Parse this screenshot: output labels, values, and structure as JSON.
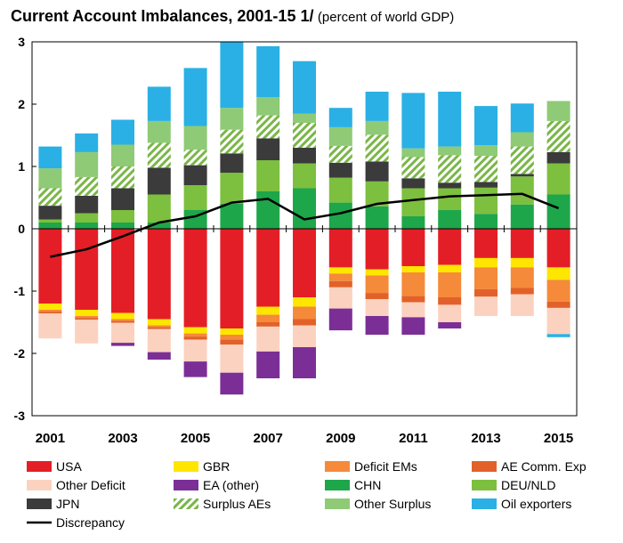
{
  "chart_data": {
    "type": "bar",
    "stacked": true,
    "title": "Current Account Imbalances, 2001-15 1/",
    "subtitle": "(percent of world GDP)",
    "xlabel": "",
    "ylabel": "",
    "ylim": [
      -3,
      3
    ],
    "yticks": [
      "3",
      "2",
      "1",
      "0",
      "-1",
      "-2",
      "-3"
    ],
    "grid": false,
    "legend_position": "bottom",
    "categories": [
      "2001",
      "2002",
      "2003",
      "2004",
      "2005",
      "2006",
      "2007",
      "2008",
      "2009",
      "2010",
      "2011",
      "2012",
      "2013",
      "2014",
      "2015"
    ],
    "x_tick_labels": [
      "2001",
      "2003",
      "2005",
      "2007",
      "2009",
      "2011",
      "2013",
      "2015"
    ],
    "positive_series": [
      {
        "name": "CHN",
        "color": "#1ea64a",
        "values": [
          0.1,
          0.1,
          0.1,
          0.1,
          0.3,
          0.4,
          0.6,
          0.65,
          0.42,
          0.36,
          0.2,
          0.3,
          0.24,
          0.39,
          0.55
        ]
      },
      {
        "name": "DEU/NLD",
        "color": "#7dbf3e",
        "values": [
          0.05,
          0.15,
          0.2,
          0.45,
          0.4,
          0.5,
          0.5,
          0.4,
          0.4,
          0.4,
          0.45,
          0.35,
          0.42,
          0.45,
          0.5
        ]
      },
      {
        "name": "JPN",
        "color": "#3b3b3b",
        "values": [
          0.22,
          0.28,
          0.35,
          0.43,
          0.32,
          0.31,
          0.35,
          0.25,
          0.24,
          0.32,
          0.16,
          0.09,
          0.09,
          0.04,
          0.18
        ]
      },
      {
        "name": "Surplus AEs",
        "color": "#7ab648",
        "pattern": true,
        "values": [
          0.28,
          0.3,
          0.35,
          0.4,
          0.25,
          0.38,
          0.37,
          0.4,
          0.27,
          0.43,
          0.34,
          0.44,
          0.42,
          0.44,
          0.5
        ]
      },
      {
        "name": "Other Surplus",
        "color": "#8fca76",
        "values": [
          0.32,
          0.4,
          0.35,
          0.35,
          0.38,
          0.35,
          0.29,
          0.15,
          0.3,
          0.22,
          0.14,
          0.14,
          0.17,
          0.23,
          0.32
        ]
      },
      {
        "name": "Oil exporters",
        "color": "#2ab0e4",
        "values": [
          0.35,
          0.3,
          0.4,
          0.55,
          0.93,
          1.06,
          0.82,
          0.84,
          0.31,
          0.47,
          0.89,
          0.88,
          0.63,
          0.46,
          0.0
        ]
      }
    ],
    "negative_series": [
      {
        "name": "USA",
        "color": "#e41e26",
        "values": [
          -1.2,
          -1.3,
          -1.35,
          -1.45,
          -1.58,
          -1.6,
          -1.25,
          -1.1,
          -0.62,
          -0.65,
          -0.6,
          -0.58,
          -0.47,
          -0.47,
          -0.62
        ]
      },
      {
        "name": "GBR",
        "color": "#ffe600",
        "values": [
          -0.1,
          -0.1,
          -0.1,
          -0.1,
          -0.1,
          -0.1,
          -0.13,
          -0.15,
          -0.1,
          -0.1,
          -0.1,
          -0.12,
          -0.15,
          -0.15,
          -0.2
        ]
      },
      {
        "name": "Deficit EMs",
        "color": "#f58a3a",
        "values": [
          -0.03,
          -0.03,
          -0.03,
          -0.03,
          -0.05,
          -0.08,
          -0.12,
          -0.2,
          -0.12,
          -0.28,
          -0.38,
          -0.4,
          -0.35,
          -0.33,
          -0.35
        ]
      },
      {
        "name": "AE Comm. Exp",
        "color": "#e2612a",
        "values": [
          -0.03,
          -0.03,
          -0.03,
          -0.03,
          -0.05,
          -0.08,
          -0.07,
          -0.1,
          -0.1,
          -0.1,
          -0.1,
          -0.12,
          -0.12,
          -0.1,
          -0.1
        ]
      },
      {
        "name": "Other Deficit",
        "color": "#fbd2bf",
        "values": [
          -0.4,
          -0.38,
          -0.32,
          -0.37,
          -0.35,
          -0.45,
          -0.4,
          -0.35,
          -0.34,
          -0.27,
          -0.24,
          -0.28,
          -0.31,
          -0.35,
          -0.42
        ]
      },
      {
        "name": "EA (other)",
        "color": "#7b2f96",
        "values": [
          0.0,
          0.0,
          -0.05,
          -0.12,
          -0.25,
          -0.35,
          -0.43,
          -0.5,
          -0.35,
          -0.3,
          -0.28,
          -0.1,
          0.0,
          0.0,
          0.0
        ]
      },
      {
        "name": "Oil exporters",
        "color": "#2ab0e4",
        "values": [
          0,
          0,
          0,
          0,
          0,
          0,
          0,
          0,
          0,
          0,
          0,
          0,
          0,
          0,
          -0.05
        ]
      }
    ],
    "line_series": {
      "name": "Discrepancy",
      "color": "#000000",
      "values": [
        -0.45,
        -0.33,
        -0.12,
        0.1,
        0.2,
        0.42,
        0.48,
        0.15,
        0.25,
        0.4,
        0.46,
        0.52,
        0.54,
        0.56,
        0.33
      ]
    },
    "legend": [
      {
        "label": "USA",
        "color": "#e41e26",
        "kind": "box"
      },
      {
        "label": "GBR",
        "color": "#ffe600",
        "kind": "box"
      },
      {
        "label": "Deficit EMs",
        "color": "#f58a3a",
        "kind": "box"
      },
      {
        "label": "AE Comm. Exp",
        "color": "#e2612a",
        "kind": "box"
      },
      {
        "label": "Other Deficit",
        "color": "#fbd2bf",
        "kind": "box"
      },
      {
        "label": "EA (other)",
        "color": "#7b2f96",
        "kind": "box"
      },
      {
        "label": "CHN",
        "color": "#1ea64a",
        "kind": "box"
      },
      {
        "label": "DEU/NLD",
        "color": "#7dbf3e",
        "kind": "box"
      },
      {
        "label": "JPN",
        "color": "#3b3b3b",
        "kind": "box"
      },
      {
        "label": "Surplus AEs",
        "color": "#7ab648",
        "kind": "hatch"
      },
      {
        "label": "Other Surplus",
        "color": "#8fca76",
        "kind": "box"
      },
      {
        "label": "Oil exporters",
        "color": "#2ab0e4",
        "kind": "box"
      },
      {
        "label": "Discrepancy",
        "color": "#000000",
        "kind": "line"
      }
    ]
  }
}
